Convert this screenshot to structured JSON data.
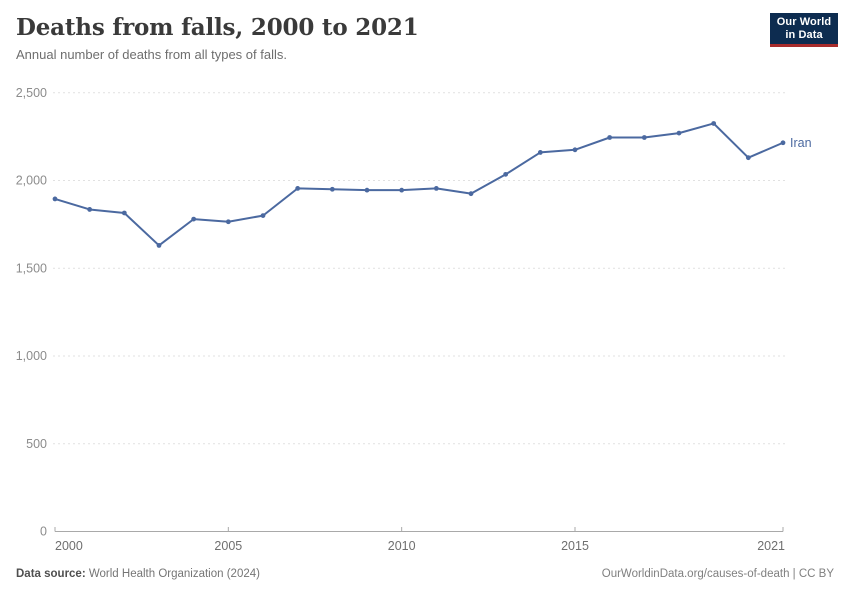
{
  "header": {
    "title": "Deaths from falls, 2000 to 2021",
    "subtitle": "Annual number of deaths from all types of falls.",
    "logo": {
      "line1": "Our World",
      "line2": "in Data"
    }
  },
  "chart_data": {
    "type": "line",
    "title": "Deaths from falls, 2000 to 2021",
    "xlabel": "",
    "ylabel": "",
    "xlim": [
      2000,
      2021
    ],
    "ylim": [
      0,
      2500
    ],
    "grid": "horizontal dashed",
    "legend_position": "end-of-line label",
    "x": [
      2000,
      2001,
      2002,
      2003,
      2004,
      2005,
      2006,
      2007,
      2008,
      2009,
      2010,
      2011,
      2012,
      2013,
      2014,
      2015,
      2016,
      2017,
      2018,
      2019,
      2020,
      2021
    ],
    "series": [
      {
        "name": "Iran",
        "color": "#4b69a0",
        "values": [
          1895,
          1835,
          1815,
          1630,
          1780,
          1765,
          1800,
          1955,
          1950,
          1945,
          1945,
          1955,
          1925,
          2035,
          2160,
          2175,
          2245,
          2245,
          2270,
          2325,
          2130,
          2215
        ]
      }
    ],
    "x_ticks": [
      2000,
      2005,
      2010,
      2015,
      2021
    ],
    "x_tick_labels": [
      "2000",
      "2005",
      "2010",
      "2015",
      "2021"
    ],
    "y_ticks": [
      0,
      500,
      1000,
      1500,
      2000,
      2500
    ],
    "y_tick_labels": [
      "0",
      "500",
      "1,000",
      "1,500",
      "2,000",
      "2,500"
    ]
  },
  "colors": {
    "line": "#4b69a0",
    "series_label": "#4b69a0",
    "grid": "#e1e1e1",
    "axis": "#a9a9a9",
    "y_tick_text": "#8c8c8c",
    "x_tick_text": "#6f6f6f",
    "logo_bg": "#0d2c50",
    "logo_bar": "#a82c2c"
  },
  "footer": {
    "source_label": "Data source:",
    "source_value": " World Health Organization (2024)",
    "link": "OurWorldinData.org/causes-of-death | CC BY"
  }
}
